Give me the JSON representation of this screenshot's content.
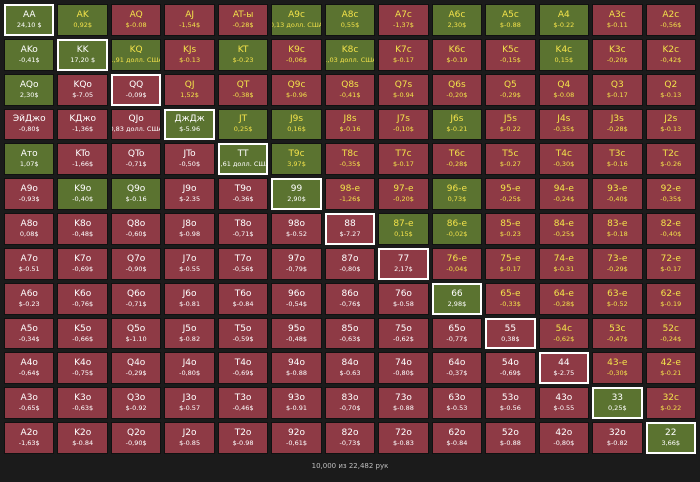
{
  "colors": {
    "red": "#8e3a45",
    "green": "#5b7330",
    "yellow_text": "#f2e24a",
    "selected_border": "#ffffff"
  },
  "footer": "10,000 из 22,482 рук",
  "rows": [
    [
      [
        "AA",
        "24,10 $",
        "green",
        "white",
        1
      ],
      [
        "AK",
        "0,92$",
        "green",
        "yellow",
        0
      ],
      [
        "AQ",
        "$-0.08",
        "red",
        "yellow",
        0
      ],
      [
        "AJ",
        "-1,54$",
        "red",
        "yellow",
        0
      ],
      [
        "AT-ы",
        "-0,28$",
        "red",
        "yellow",
        0
      ],
      [
        "A9c",
        "0,13 долл. США",
        "green",
        "yellow",
        0
      ],
      [
        "A8c",
        "0,55$",
        "green",
        "yellow",
        0
      ],
      [
        "A7c",
        "-1,37$",
        "red",
        "yellow",
        0
      ],
      [
        "A6c",
        "2,30$",
        "green",
        "yellow",
        0
      ],
      [
        "A5c",
        "$-0.88",
        "green",
        "yellow",
        0
      ],
      [
        "A4",
        "$-0.22",
        "green",
        "yellow",
        0
      ],
      [
        "A3c",
        "$-0.11",
        "red",
        "yellow",
        0
      ],
      [
        "A2c",
        "-0,56$",
        "red",
        "yellow",
        0
      ]
    ],
    [
      [
        "AKo",
        "-0,41$",
        "green",
        "white",
        0
      ],
      [
        "KK",
        "17,20 $",
        "green",
        "white",
        1
      ],
      [
        "KQ",
        "1,91 долл. США",
        "green",
        "yellow",
        0
      ],
      [
        "KJs",
        "$-0.13",
        "red",
        "yellow",
        0
      ],
      [
        "KT",
        "$-0.23",
        "green",
        "yellow",
        0
      ],
      [
        "K9c",
        "-0,06$",
        "red",
        "yellow",
        0
      ],
      [
        "K8c",
        "1,03 долл. США",
        "green",
        "yellow",
        0
      ],
      [
        "K7c",
        "$-0.17",
        "red",
        "yellow",
        0
      ],
      [
        "K6c",
        "$-0.19",
        "red",
        "yellow",
        0
      ],
      [
        "K5c",
        "-0,15$",
        "red",
        "yellow",
        0
      ],
      [
        "K4c",
        "0,15$",
        "green",
        "yellow",
        0
      ],
      [
        "K3c",
        "-0,20$",
        "red",
        "yellow",
        0
      ],
      [
        "K2c",
        "-0,42$",
        "red",
        "yellow",
        0
      ]
    ],
    [
      [
        "AQo",
        "2,30$",
        "green",
        "white",
        0
      ],
      [
        "KQo",
        "$-7.05",
        "red",
        "white",
        0
      ],
      [
        "QQ",
        "-0,09$",
        "red",
        "white",
        1
      ],
      [
        "QJ",
        "1,52$",
        "red",
        "yellow",
        0
      ],
      [
        "QT",
        "-0,38$",
        "red",
        "yellow",
        0
      ],
      [
        "Q9c",
        "$-0.96",
        "red",
        "yellow",
        0
      ],
      [
        "Q8s",
        "-0,41$",
        "red",
        "yellow",
        0
      ],
      [
        "Q7s",
        "$-0.94",
        "red",
        "yellow",
        0
      ],
      [
        "Q6s",
        "-0,20$",
        "red",
        "yellow",
        0
      ],
      [
        "Q5",
        "-0,29$",
        "red",
        "yellow",
        0
      ],
      [
        "Q4",
        "$-0.08",
        "red",
        "yellow",
        0
      ],
      [
        "Q3",
        "$-0.17",
        "red",
        "yellow",
        0
      ],
      [
        "Q2",
        "$-0.13",
        "red",
        "yellow",
        0
      ]
    ],
    [
      [
        "ЭйДжо",
        "-0,80$",
        "red",
        "white",
        0
      ],
      [
        "KДжо",
        "-1,36$",
        "red",
        "white",
        0
      ],
      [
        "QJo",
        "0,83 долл. США",
        "red",
        "white",
        0
      ],
      [
        "ДжДж",
        "$-5.96",
        "green",
        "white",
        1
      ],
      [
        "JT",
        "0,25$",
        "green",
        "yellow",
        0
      ],
      [
        "J9s",
        "0,16$",
        "green",
        "yellow",
        0
      ],
      [
        "J8s",
        "$-0.16",
        "red",
        "yellow",
        0
      ],
      [
        "J7s",
        "-0,10$",
        "red",
        "yellow",
        0
      ],
      [
        "J6s",
        "$-0.21",
        "green",
        "yellow",
        0
      ],
      [
        "J5s",
        "$-0.22",
        "red",
        "yellow",
        0
      ],
      [
        "J4s",
        "-0,35$",
        "red",
        "yellow",
        0
      ],
      [
        "J3s",
        "-0,28$",
        "red",
        "yellow",
        0
      ],
      [
        "J2s",
        "$-0.13",
        "red",
        "yellow",
        0
      ]
    ],
    [
      [
        "Ато",
        "1,07$",
        "green",
        "white",
        0
      ],
      [
        "KTo",
        "-1,66$",
        "red",
        "white",
        0
      ],
      [
        "QTo",
        "-0,71$",
        "red",
        "white",
        0
      ],
      [
        "JTo",
        "-0,50$",
        "red",
        "white",
        0
      ],
      [
        "TT",
        "1,61 долл. США",
        "green",
        "white",
        1
      ],
      [
        "T9c",
        "3,97$",
        "green",
        "yellow",
        0
      ],
      [
        "T8c",
        "-0,35$",
        "red",
        "yellow",
        0
      ],
      [
        "T7c",
        "$-0.17",
        "red",
        "yellow",
        0
      ],
      [
        "T6c",
        "-0,28$",
        "red",
        "yellow",
        0
      ],
      [
        "T5c",
        "$-0.27",
        "red",
        "yellow",
        0
      ],
      [
        "T4c",
        "-0,30$",
        "red",
        "yellow",
        0
      ],
      [
        "T3c",
        "$-0.16",
        "red",
        "yellow",
        0
      ],
      [
        "T2c",
        "$-0.26",
        "red",
        "yellow",
        0
      ]
    ],
    [
      [
        "A9o",
        "-0,93$",
        "red",
        "white",
        0
      ],
      [
        "K9o",
        "-0,40$",
        "green",
        "white",
        0
      ],
      [
        "Q9o",
        "$-0.16",
        "green",
        "white",
        0
      ],
      [
        "J9o",
        "$-2.35",
        "red",
        "white",
        0
      ],
      [
        "T9o",
        "-0,36$",
        "red",
        "white",
        0
      ],
      [
        "99",
        "2,90$",
        "green",
        "white",
        1
      ],
      [
        "98-е",
        "-1,26$",
        "red",
        "yellow",
        0
      ],
      [
        "97-е",
        "-0,20$",
        "red",
        "yellow",
        0
      ],
      [
        "96-е",
        "0,73$",
        "green",
        "yellow",
        0
      ],
      [
        "95-е",
        "-0,25$",
        "red",
        "yellow",
        0
      ],
      [
        "94-е",
        "-0,24$",
        "red",
        "yellow",
        0
      ],
      [
        "93-е",
        "-0,40$",
        "red",
        "yellow",
        0
      ],
      [
        "92-е",
        "-0,35$",
        "red",
        "yellow",
        0
      ]
    ],
    [
      [
        "A8o",
        "0,08$",
        "red",
        "white",
        0
      ],
      [
        "K8o",
        "-0,48$",
        "red",
        "white",
        0
      ],
      [
        "Q8o",
        "-0,60$",
        "red",
        "white",
        0
      ],
      [
        "J8o",
        "$-0.98",
        "red",
        "white",
        0
      ],
      [
        "T8o",
        "-0,71$",
        "red",
        "white",
        0
      ],
      [
        "98o",
        "$-0.52",
        "red",
        "white",
        0
      ],
      [
        "88",
        "$-7.27",
        "red",
        "white",
        1
      ],
      [
        "87-е",
        "0,15$",
        "green",
        "yellow",
        0
      ],
      [
        "86-е",
        "-0,02$",
        "green",
        "yellow",
        0
      ],
      [
        "85-е",
        "$-0.23",
        "red",
        "yellow",
        0
      ],
      [
        "84-е",
        "-0,25$",
        "red",
        "yellow",
        0
      ],
      [
        "83-е",
        "$-0.18",
        "red",
        "yellow",
        0
      ],
      [
        "82-е",
        "-0,40$",
        "red",
        "yellow",
        0
      ]
    ],
    [
      [
        "A7o",
        "$-0.51",
        "red",
        "white",
        0
      ],
      [
        "K7o",
        "-0,69$",
        "red",
        "white",
        0
      ],
      [
        "Q7o",
        "-0,90$",
        "red",
        "white",
        0
      ],
      [
        "J7o",
        "$-0.55",
        "red",
        "white",
        0
      ],
      [
        "T7o",
        "-0,56$",
        "red",
        "white",
        0
      ],
      [
        "97o",
        "-0,79$",
        "red",
        "white",
        0
      ],
      [
        "87o",
        "-0,80$",
        "red",
        "white",
        0
      ],
      [
        "77",
        "2,17$",
        "red",
        "white",
        1
      ],
      [
        "76-е",
        "-0,04$",
        "red",
        "yellow",
        0
      ],
      [
        "75-е",
        "$-0.17",
        "red",
        "yellow",
        0
      ],
      [
        "74-е",
        "$-0.31",
        "red",
        "yellow",
        0
      ],
      [
        "73-е",
        "-0,29$",
        "red",
        "yellow",
        0
      ],
      [
        "72-е",
        "$-0.17",
        "red",
        "yellow",
        0
      ]
    ],
    [
      [
        "A6o",
        "$-0.23",
        "red",
        "white",
        0
      ],
      [
        "K6o",
        "-0,76$",
        "red",
        "white",
        0
      ],
      [
        "Q6o",
        "-0,71$",
        "red",
        "white",
        0
      ],
      [
        "J6o",
        "$-0.81",
        "red",
        "white",
        0
      ],
      [
        "T6o",
        "$-0.84",
        "red",
        "white",
        0
      ],
      [
        "96o",
        "-0,54$",
        "red",
        "white",
        0
      ],
      [
        "86o",
        "-0,76$",
        "red",
        "white",
        0
      ],
      [
        "76o",
        "$-0.58",
        "red",
        "white",
        0
      ],
      [
        "66",
        "2,98$",
        "green",
        "white",
        1
      ],
      [
        "65-е",
        "-0,33$",
        "red",
        "yellow",
        0
      ],
      [
        "64-е",
        "-0,28$",
        "red",
        "yellow",
        0
      ],
      [
        "63-е",
        "$-0.52",
        "red",
        "yellow",
        0
      ],
      [
        "62-е",
        "$-0.19",
        "red",
        "yellow",
        0
      ]
    ],
    [
      [
        "A5o",
        "-0,34$",
        "red",
        "white",
        0
      ],
      [
        "K5o",
        "-0,66$",
        "red",
        "white",
        0
      ],
      [
        "Q5o",
        "$-1.10",
        "red",
        "white",
        0
      ],
      [
        "J5o",
        "$-0.82",
        "red",
        "white",
        0
      ],
      [
        "T5o",
        "-0,59$",
        "red",
        "white",
        0
      ],
      [
        "95o",
        "-0,48$",
        "red",
        "white",
        0
      ],
      [
        "85o",
        "-0,63$",
        "red",
        "white",
        0
      ],
      [
        "75o",
        "-0,62$",
        "red",
        "white",
        0
      ],
      [
        "65o",
        "-0,77$",
        "red",
        "white",
        0
      ],
      [
        "55",
        "0,38$",
        "red",
        "white",
        1
      ],
      [
        "54c",
        "-0,62$",
        "red",
        "yellow",
        0
      ],
      [
        "53c",
        "-0,47$",
        "red",
        "yellow",
        0
      ],
      [
        "52c",
        "-0,24$",
        "red",
        "yellow",
        0
      ]
    ],
    [
      [
        "A4o",
        "-0,64$",
        "red",
        "white",
        0
      ],
      [
        "K4o",
        "-0,75$",
        "red",
        "white",
        0
      ],
      [
        "Q4o",
        "-0,29$",
        "red",
        "white",
        0
      ],
      [
        "J4o",
        "-0,80$",
        "red",
        "white",
        0
      ],
      [
        "T4o",
        "-0,69$",
        "red",
        "white",
        0
      ],
      [
        "94o",
        "$-0.88",
        "red",
        "white",
        0
      ],
      [
        "84o",
        "$-0.63",
        "red",
        "white",
        0
      ],
      [
        "74o",
        "-0,80$",
        "red",
        "white",
        0
      ],
      [
        "64o",
        "-0,37$",
        "red",
        "white",
        0
      ],
      [
        "54o",
        "-0,69$",
        "red",
        "white",
        0
      ],
      [
        "44",
        "$-2.75",
        "red",
        "white",
        1
      ],
      [
        "43-е",
        "-0,30$",
        "red",
        "yellow",
        0
      ],
      [
        "42-е",
        "$-0.21",
        "red",
        "yellow",
        0
      ]
    ],
    [
      [
        "A3o",
        "-0,65$",
        "red",
        "white",
        0
      ],
      [
        "K3o",
        "-0,63$",
        "red",
        "white",
        0
      ],
      [
        "Q3o",
        "$-0.92",
        "red",
        "white",
        0
      ],
      [
        "J3o",
        "$-0.57",
        "red",
        "white",
        0
      ],
      [
        "T3o",
        "-0,46$",
        "red",
        "white",
        0
      ],
      [
        "93o",
        "$-0.91",
        "red",
        "white",
        0
      ],
      [
        "83o",
        "-0,70$",
        "red",
        "white",
        0
      ],
      [
        "73o",
        "$-0.88",
        "red",
        "white",
        0
      ],
      [
        "63o",
        "$-0.53",
        "red",
        "white",
        0
      ],
      [
        "53o",
        "$-0.56",
        "red",
        "white",
        0
      ],
      [
        "43o",
        "$-0.55",
        "red",
        "white",
        0
      ],
      [
        "33",
        "0,25$",
        "green",
        "white",
        1
      ],
      [
        "32c",
        "$-0.22",
        "red",
        "yellow",
        0
      ]
    ],
    [
      [
        "A2o",
        "-1,63$",
        "red",
        "white",
        0
      ],
      [
        "K2o",
        "$-0.84",
        "red",
        "white",
        0
      ],
      [
        "Q2o",
        "-0,90$",
        "red",
        "white",
        0
      ],
      [
        "J2o",
        "$-0.85",
        "red",
        "white",
        0
      ],
      [
        "T2o",
        "$-0.98",
        "red",
        "white",
        0
      ],
      [
        "92o",
        "-0,61$",
        "red",
        "white",
        0
      ],
      [
        "82o",
        "-0,73$",
        "red",
        "white",
        0
      ],
      [
        "72o",
        "$-0.83",
        "red",
        "white",
        0
      ],
      [
        "62o",
        "$-0.84",
        "red",
        "white",
        0
      ],
      [
        "52o",
        "$-0.88",
        "red",
        "white",
        0
      ],
      [
        "42o",
        "-0,80$",
        "red",
        "white",
        0
      ],
      [
        "32o",
        "$-0.82",
        "red",
        "white",
        0
      ],
      [
        "22",
        "3,66$",
        "green",
        "white",
        1
      ]
    ]
  ]
}
